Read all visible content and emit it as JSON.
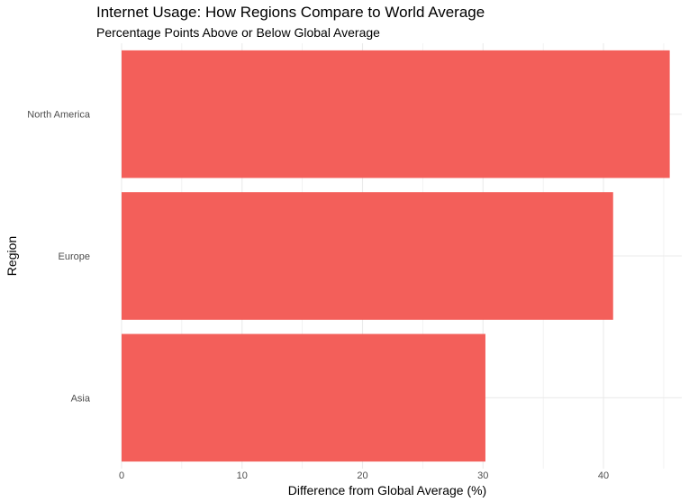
{
  "chart_data": {
    "type": "bar",
    "orientation": "horizontal",
    "title": "Internet Usage: How Regions Compare to World Average",
    "subtitle": "Percentage Points Above or Below Global Average",
    "xlabel": "Difference from Global Average (%)",
    "ylabel": "Region",
    "categories": [
      "North America",
      "Europe",
      "Asia"
    ],
    "values": [
      45.5,
      40.8,
      30.2
    ],
    "xlim": [
      0,
      46.5
    ],
    "xticks": [
      0,
      10,
      20,
      30,
      40
    ],
    "xtick_labels": [
      "0",
      "10",
      "20",
      "30",
      "40"
    ],
    "grid": true,
    "legend": "none",
    "bar_color": "#f35f5a",
    "grid_color": "#ebebeb"
  }
}
